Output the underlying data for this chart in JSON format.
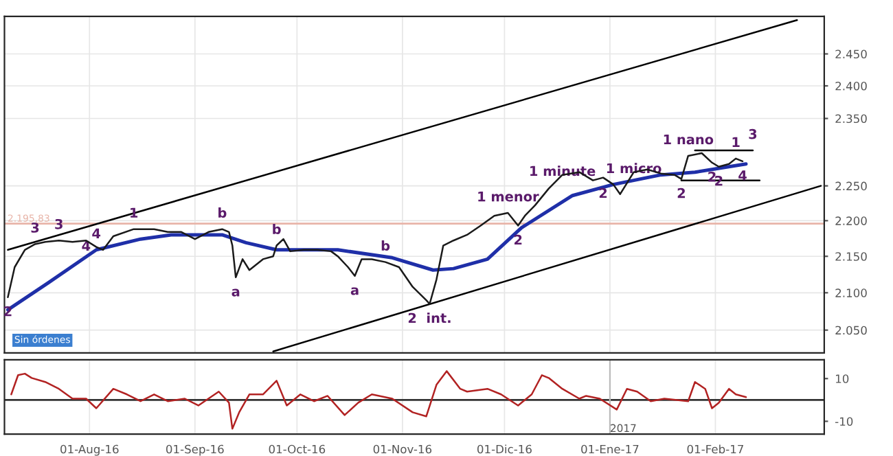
{
  "chart_data": [
    {
      "type": "line",
      "log": "y",
      "grid": true,
      "tick_labels": "y",
      "xlim": [
        "2016-07-07",
        "2017-03-05"
      ],
      "ylim": [
        2020,
        2510
      ],
      "xticks": [
        {
          "value": "2016-08-01",
          "label": null
        },
        {
          "value": "2016-09-01",
          "label": null
        },
        {
          "value": "2016-10-01",
          "label": null
        },
        {
          "value": "2016-11-01",
          "label": null
        },
        {
          "value": "2016-12-01",
          "label": null
        },
        {
          "value": "2017-01-01",
          "label": null
        },
        {
          "value": "2017-02-01",
          "label": null
        }
      ],
      "yticks": [
        {
          "value": 2050,
          "label": "2.050"
        },
        {
          "value": 2100,
          "label": "2.100"
        },
        {
          "value": 2150,
          "label": "2.150"
        },
        {
          "value": 2200,
          "label": "2.200"
        },
        {
          "value": 2250,
          "label": "2.250"
        },
        {
          "value": 2350,
          "label": "2.350"
        },
        {
          "value": 2400,
          "label": "2.400"
        },
        {
          "value": 2450,
          "label": "2.450"
        }
      ],
      "ref_lines": [
        {
          "axis": "y",
          "value": 2195.83,
          "label": "2.195,83",
          "color": "#e8b4a8"
        }
      ],
      "series": [
        {
          "color": "#1a1a1a",
          "x": [
            "2016-07-08",
            "2016-07-10",
            "2016-07-13",
            "2016-07-16",
            "2016-07-19",
            "2016-07-23",
            "2016-07-27",
            "2016-07-31",
            "2016-08-03",
            "2016-08-05",
            "2016-08-08",
            "2016-08-14",
            "2016-08-20",
            "2016-08-24",
            "2016-08-28",
            "2016-09-01",
            "2016-09-05",
            "2016-09-09",
            "2016-09-11",
            "2016-09-12",
            "2016-09-13",
            "2016-09-15",
            "2016-09-17",
            "2016-09-21",
            "2016-09-24",
            "2016-09-25",
            "2016-09-27",
            "2016-09-29",
            "2016-10-03",
            "2016-10-07",
            "2016-10-11",
            "2016-10-13",
            "2016-10-16",
            "2016-10-18",
            "2016-10-20",
            "2016-10-23",
            "2016-10-27",
            "2016-10-31",
            "2016-11-04",
            "2016-11-08",
            "2016-11-09",
            "2016-11-11",
            "2016-11-13",
            "2016-11-16",
            "2016-11-20",
            "2016-11-24",
            "2016-11-28",
            "2016-12-02",
            "2016-12-05",
            "2016-12-07",
            "2016-12-10",
            "2016-12-14",
            "2016-12-18",
            "2016-12-23",
            "2016-12-27",
            "2016-12-30",
            "2017-01-02",
            "2017-01-04",
            "2017-01-08",
            "2017-01-12",
            "2017-01-16",
            "2017-01-20",
            "2017-01-22",
            "2017-01-24",
            "2017-01-28",
            "2017-01-31",
            "2017-02-02",
            "2017-02-05",
            "2017-02-07",
            "2017-02-09"
          ],
          "values": [
            2094,
            2135,
            2159,
            2167,
            2170,
            2172,
            2170,
            2172,
            2163,
            2159,
            2178,
            2188,
            2188,
            2184,
            2184,
            2174,
            2184,
            2188,
            2184,
            2165,
            2121,
            2146,
            2131,
            2146,
            2150,
            2165,
            2174,
            2157,
            2159,
            2159,
            2157,
            2150,
            2135,
            2123,
            2146,
            2146,
            2142,
            2135,
            2108,
            2090,
            2085,
            2118,
            2165,
            2172,
            2180,
            2193,
            2207,
            2211,
            2193,
            2207,
            2222,
            2246,
            2266,
            2270,
            2258,
            2262,
            2252,
            2238,
            2270,
            2274,
            2268,
            2266,
            2260,
            2294,
            2298,
            2284,
            2278,
            2282,
            2290,
            2286
          ]
        },
        {
          "color": "#1f2fa8",
          "x": [
            "2016-07-08",
            "2016-07-20",
            "2016-08-03",
            "2016-08-16",
            "2016-08-25",
            "2016-09-09",
            "2016-09-16",
            "2016-09-25",
            "2016-10-13",
            "2016-10-29",
            "2016-11-10",
            "2016-11-16",
            "2016-11-26",
            "2016-12-06",
            "2016-12-21",
            "2017-01-02",
            "2017-01-16",
            "2017-01-26",
            "2017-02-10"
          ],
          "values": [
            2077,
            2114,
            2159,
            2174,
            2180,
            2180,
            2169,
            2159,
            2159,
            2148,
            2131,
            2133,
            2146,
            2190,
            2236,
            2252,
            2266,
            2270,
            2282
          ]
        },
        {
          "color": "#000000",
          "x": [
            "2016-07-08",
            "2017-02-25"
          ],
          "values": [
            2159,
            2504
          ]
        },
        {
          "color": "#000000",
          "x": [
            "2016-09-24",
            "2017-03-04"
          ],
          "values": [
            2022,
            2250
          ]
        },
        {
          "color": "#000000",
          "x": [
            "2017-01-26",
            "2017-02-12"
          ],
          "values": [
            2302,
            2302
          ]
        },
        {
          "color": "#000000",
          "x": [
            "2017-01-22",
            "2017-02-14"
          ],
          "values": [
            2258,
            2258
          ]
        }
      ],
      "annotations": [
        {
          "text": "1",
          "x": "2016-08-14",
          "y": 2188
        },
        {
          "text": "3",
          "x": "2016-07-23",
          "y": 2172
        },
        {
          "text": "3",
          "x": "2016-07-16",
          "y": 2167
        },
        {
          "text": "4",
          "x": "2016-07-31",
          "y": 2163
        },
        {
          "text": "4",
          "x": "2016-08-03",
          "y": 2159
        },
        {
          "text": "2",
          "x": "2016-07-08",
          "y": 2094
        },
        {
          "text": "b",
          "x": "2016-09-09",
          "y": 2188
        },
        {
          "text": "b",
          "x": "2016-09-25",
          "y": 2165
        },
        {
          "text": "a",
          "x": "2016-09-13",
          "y": 2121
        },
        {
          "text": "a",
          "x": "2016-10-18",
          "y": 2123
        },
        {
          "text": "b",
          "x": "2016-10-27",
          "y": 2142
        },
        {
          "text": "2  int.",
          "x": "2016-11-09",
          "y": 2085
        },
        {
          "text": "2",
          "x": "2016-12-05",
          "y": 2193
        },
        {
          "text": "1 menor",
          "x": "2016-12-02",
          "y": 2211
        },
        {
          "text": "1 minute",
          "x": "2016-12-18",
          "y": 2270
        },
        {
          "text": "2",
          "x": "2016-12-30",
          "y": 2238
        },
        {
          "text": "1 micro",
          "x": "2017-01-08",
          "y": 2274
        },
        {
          "text": "2",
          "x": "2017-01-22",
          "y": 2260
        },
        {
          "text": "1 nano",
          "x": "2017-01-24",
          "y": 2294
        },
        {
          "text": "2",
          "x": "2017-01-31",
          "y": 2284
        },
        {
          "text": "1",
          "x": "2017-02-07",
          "y": 2290
        },
        {
          "text": "3",
          "x": "2017-02-12",
          "y": 2302
        },
        {
          "text": "2",
          "x": "2017-02-02",
          "y": 2278
        },
        {
          "text": "4",
          "x": "2017-02-09",
          "y": 2286
        },
        "Sin órdenes"
      ]
    },
    {
      "type": "line",
      "grid": "x",
      "xlim": [
        "2016-07-07",
        "2017-03-05"
      ],
      "ylim": [
        -16,
        18.8
      ],
      "xticks": [
        {
          "value": "2016-08-01",
          "label": "01-Aug-16"
        },
        {
          "value": "2016-09-01",
          "label": "01-Sep-16"
        },
        {
          "value": "2016-10-01",
          "label": "01-Oct-16"
        },
        {
          "value": "2016-11-01",
          "label": "01-Nov-16"
        },
        {
          "value": "2016-12-01",
          "label": "01-Dic-16"
        },
        {
          "value": "2017-01-01",
          "label": "01-Ene-17"
        },
        {
          "value": "2017-02-01",
          "label": "01-Feb-17"
        }
      ],
      "yticks": [
        {
          "value": 10,
          "label": "10"
        },
        {
          "value": -10,
          "label": "-10"
        }
      ],
      "ref_lines": [
        {
          "axis": "y",
          "value": 0,
          "color": "#333333"
        },
        {
          "axis": "x",
          "value": "2017-01-01",
          "label": "2017",
          "color": "#bbbbbb"
        }
      ],
      "series": [
        {
          "color": "#b22222",
          "x": [
            "2016-07-09",
            "2016-07-11",
            "2016-07-13",
            "2016-07-15",
            "2016-07-19",
            "2016-07-23",
            "2016-07-27",
            "2016-07-31",
            "2016-08-03",
            "2016-08-08",
            "2016-08-12",
            "2016-08-16",
            "2016-08-20",
            "2016-08-24",
            "2016-08-29",
            "2016-09-02",
            "2016-09-08",
            "2016-09-11",
            "2016-09-12",
            "2016-09-14",
            "2016-09-17",
            "2016-09-21",
            "2016-09-25",
            "2016-09-28",
            "2016-10-02",
            "2016-10-06",
            "2016-10-10",
            "2016-10-15",
            "2016-10-19",
            "2016-10-23",
            "2016-10-29",
            "2016-11-04",
            "2016-11-08",
            "2016-11-11",
            "2016-11-14",
            "2016-11-18",
            "2016-11-20",
            "2016-11-26",
            "2016-11-30",
            "2016-12-05",
            "2016-12-09",
            "2016-12-12",
            "2016-12-14",
            "2016-12-18",
            "2016-12-23",
            "2016-12-25",
            "2016-12-29",
            "2017-01-03",
            "2017-01-06",
            "2017-01-09",
            "2017-01-13",
            "2017-01-17",
            "2017-01-24",
            "2017-01-26",
            "2017-01-29",
            "2017-01-31",
            "2017-02-02",
            "2017-02-05",
            "2017-02-07",
            "2017-02-10"
          ],
          "values": [
            2.6,
            11.6,
            12.3,
            10.3,
            8.4,
            5.2,
            0.6,
            0.6,
            -3.9,
            5.2,
            2.6,
            -0.6,
            2.6,
            -0.6,
            0.6,
            -2.6,
            3.9,
            -1.3,
            -13.5,
            -5.8,
            2.6,
            2.6,
            9.0,
            -2.6,
            2.6,
            -0.6,
            1.9,
            -7.1,
            -1.3,
            2.6,
            0.6,
            -5.8,
            -7.7,
            7.1,
            13.5,
            5.2,
            3.9,
            5.2,
            2.6,
            -2.6,
            2.6,
            11.6,
            10.3,
            5.2,
            0.6,
            1.9,
            0.6,
            -4.5,
            5.2,
            3.9,
            -0.6,
            0.6,
            -0.6,
            8.4,
            5.2,
            -3.9,
            -1.3,
            5.2,
            2.6,
            1.3
          ]
        }
      ]
    }
  ]
}
